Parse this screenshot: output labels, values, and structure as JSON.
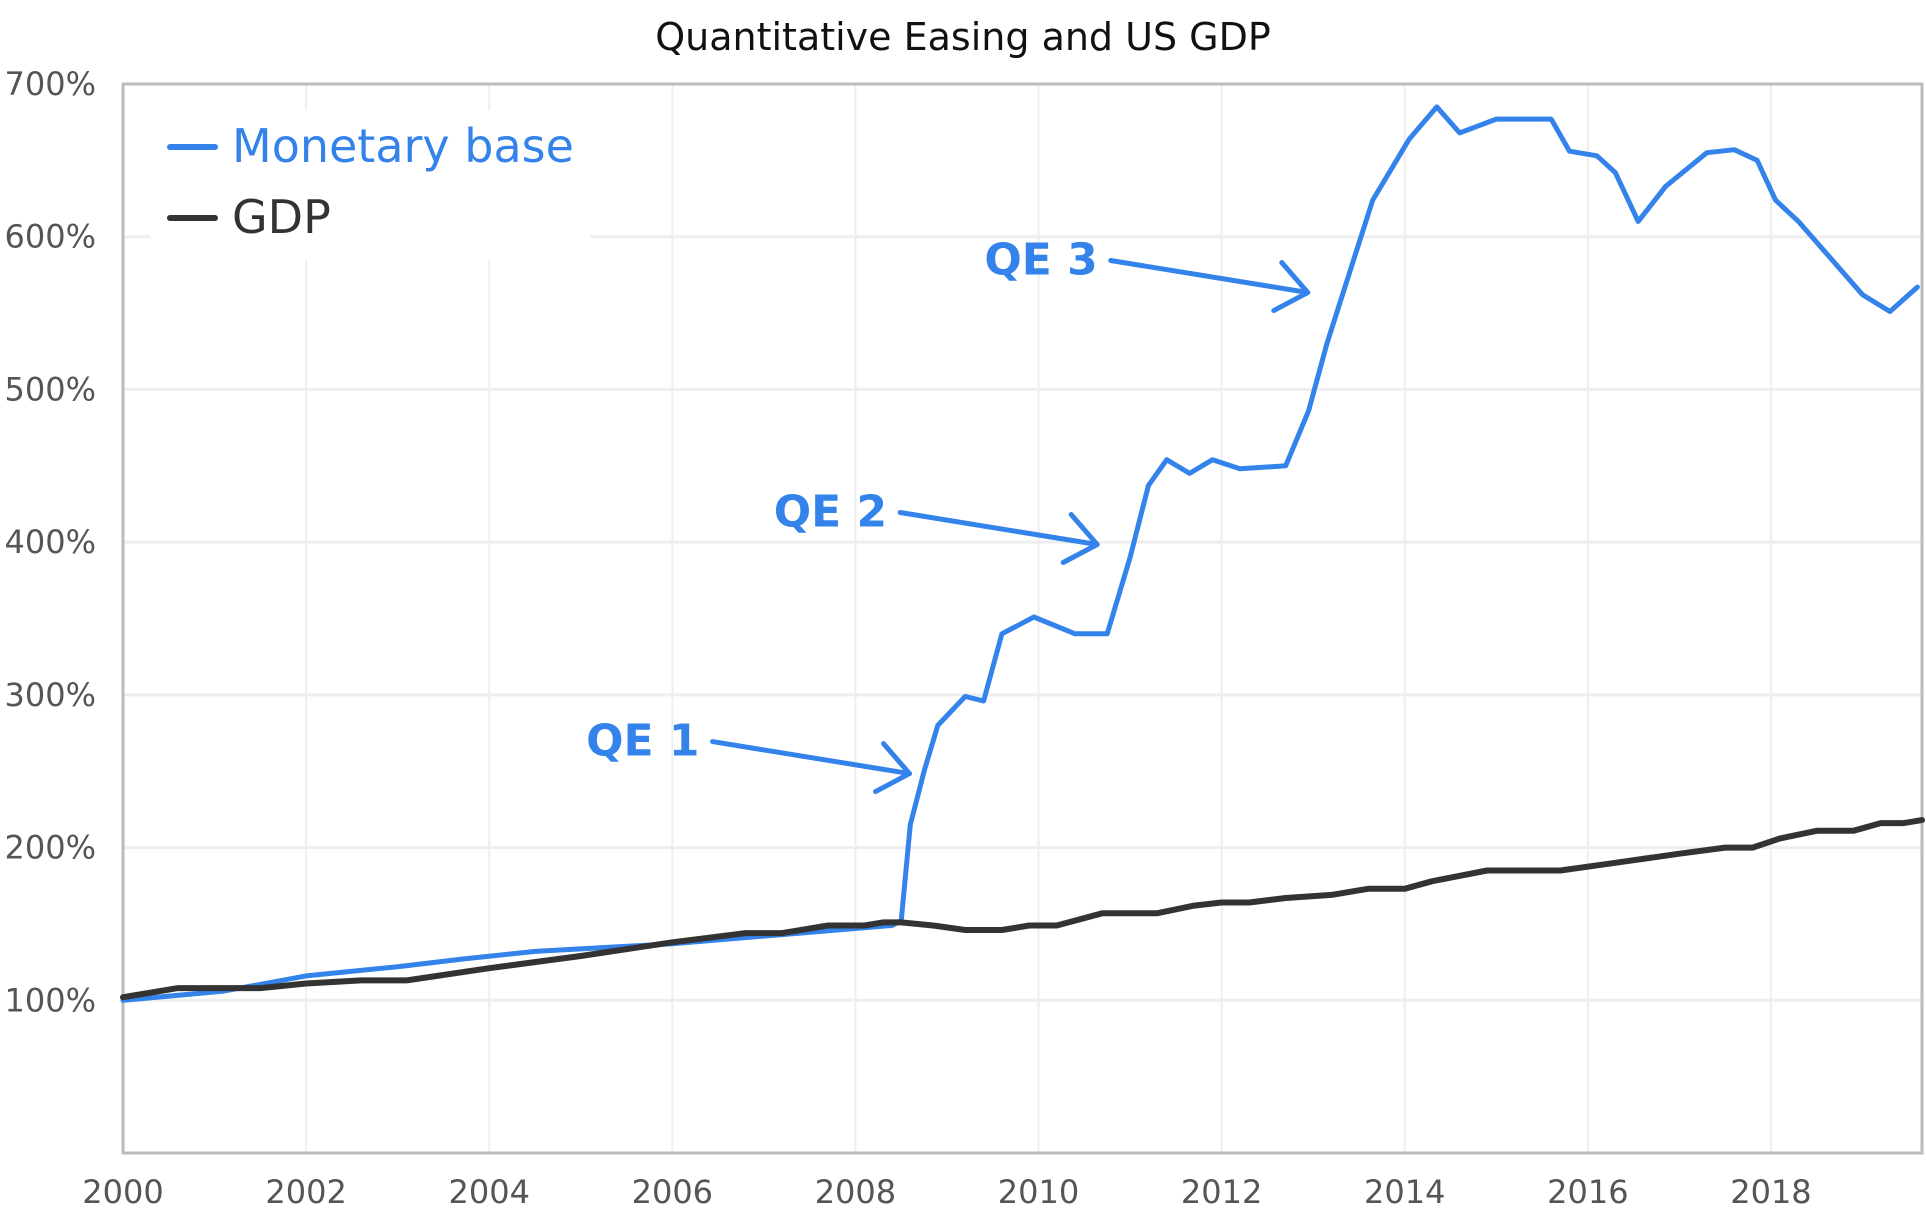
{
  "chart_data": {
    "type": "line",
    "title": "Quantitative Easing and US GDP",
    "xlabel": "",
    "ylabel": "",
    "xlim": [
      2000,
      2019.65
    ],
    "ylim": [
      0,
      700
    ],
    "grid": true,
    "x_ticks": [
      2000,
      2002,
      2004,
      2006,
      2008,
      2010,
      2012,
      2014,
      2016,
      2018
    ],
    "x_tick_labels": [
      "2000",
      "2002",
      "2004",
      "2006",
      "2008",
      "2010",
      "2012",
      "2014",
      "2016",
      "2018"
    ],
    "y_ticks": [
      100,
      200,
      300,
      400,
      500,
      600,
      700
    ],
    "y_tick_labels": [
      "100%",
      "200%",
      "300%",
      "400%",
      "500%",
      "600%",
      "700%"
    ],
    "legend_position": "top-left",
    "series": [
      {
        "name": "Monetary base",
        "color": "#3483eb",
        "x": [
          2000,
          2001.1,
          2002,
          2003,
          2003.7,
          2004.5,
          2006,
          2007,
          2008.4,
          2008.5,
          2008.6,
          2008.75,
          2008.9,
          2009.2,
          2009.4,
          2009.6,
          2009.95,
          2010.4,
          2010.75,
          2011.0,
          2011.2,
          2011.4,
          2011.65,
          2011.9,
          2012.2,
          2012.7,
          2012.95,
          2013.15,
          2013.65,
          2014.05,
          2014.35,
          2014.6,
          2015.0,
          2015.6,
          2015.8,
          2016.1,
          2016.3,
          2016.55,
          2016.85,
          2017.3,
          2017.6,
          2017.85,
          2018.05,
          2018.3,
          2019.0,
          2019.3,
          2019.6
        ],
        "values": [
          100,
          106,
          116,
          122,
          127,
          132,
          137,
          142,
          149,
          152,
          215,
          250,
          280,
          299,
          296,
          340,
          351,
          340,
          340,
          390,
          437,
          454,
          445,
          454,
          448,
          450,
          486,
          530,
          624,
          664,
          685,
          668,
          677,
          677,
          656,
          653,
          642,
          610,
          633,
          655,
          657,
          650,
          624,
          610,
          562,
          551,
          567
        ]
      },
      {
        "name": "GDP",
        "color": "#333333",
        "x": [
          2000,
          2000.6,
          2001.5,
          2002,
          2002.6,
          2003.1,
          2004,
          2005,
          2006,
          2006.8,
          2007.2,
          2007.7,
          2008.1,
          2008.3,
          2008.5,
          2008.85,
          2009.2,
          2009.6,
          2009.9,
          2010.2,
          2010.7,
          2011.3,
          2011.7,
          2012.0,
          2012.3,
          2012.7,
          2013.2,
          2013.6,
          2014.0,
          2014.3,
          2014.9,
          2015.7,
          2016.3,
          2017.0,
          2017.5,
          2017.8,
          2018.1,
          2018.5,
          2018.9,
          2019.2,
          2019.45,
          2019.65
        ],
        "values": [
          102,
          108,
          108,
          111,
          113,
          113,
          121,
          129,
          138,
          144,
          144,
          149,
          149,
          151,
          151,
          149,
          146,
          146,
          149,
          149,
          157,
          157,
          162,
          164,
          164,
          167,
          169,
          173,
          173,
          178,
          185,
          185,
          190,
          196,
          200,
          200,
          206,
          211,
          211,
          216,
          216,
          218
        ]
      }
    ],
    "annotations": [
      {
        "text": "QE 1",
        "x": 2008.7,
        "y": 255,
        "color": "#3483eb"
      },
      {
        "text": "QE 2",
        "x": 2010.75,
        "y": 405,
        "color": "#3483eb"
      },
      {
        "text": "QE 3",
        "x": 2013.05,
        "y": 570,
        "color": "#3483eb"
      }
    ]
  }
}
